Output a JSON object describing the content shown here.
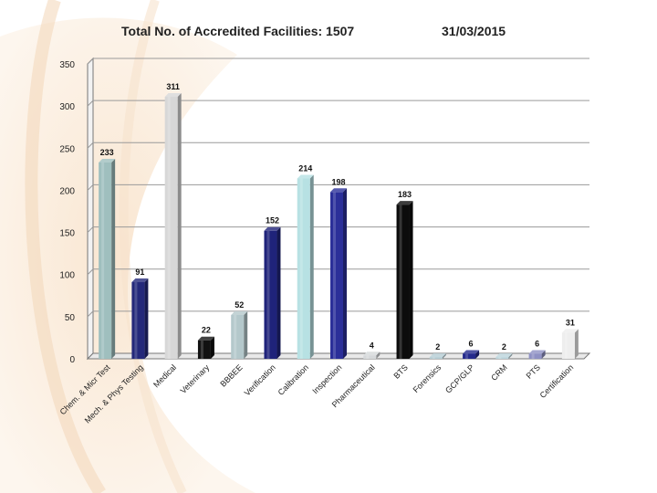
{
  "header": {
    "title": "Total No. of Accredited Facilities: 1507",
    "date": "31/03/2015"
  },
  "colors": {
    "background_swirl": "#f7dfc4",
    "grid": "#9a9a9a",
    "axis": "#777777"
  },
  "chart_data": {
    "type": "bar",
    "title": "Total No. of Accredited Facilities: 1507",
    "xlabel": "",
    "ylabel": "",
    "ylim": [
      0,
      350
    ],
    "yticks": [
      0,
      50,
      100,
      150,
      200,
      250,
      300,
      350
    ],
    "grid": true,
    "style": "3d-cylinder-bars",
    "categories": [
      "Chem. & Micr Test",
      "Mech. & Phys Testing",
      "Medical",
      "Veterinary",
      "BBBEE",
      "Verification",
      "Calibration",
      "Inspection",
      "Pharmaceutical",
      "BTS",
      "Forensics",
      "GCP/GLP",
      "CRM",
      "PTS",
      "Certification"
    ],
    "values": [
      233,
      91,
      311,
      22,
      52,
      152,
      214,
      198,
      4,
      183,
      2,
      6,
      2,
      6,
      31
    ],
    "bar_colors": [
      "#9fbfbe",
      "#24297a",
      "#d7d7d7",
      "#111111",
      "#b4c8cb",
      "#1f237a",
      "#b7e1e3",
      "#2b2f99",
      "#d5d8da",
      "#0c0c0c",
      "#b5cdd4",
      "#242a8c",
      "#bcd5dc",
      "#8f91c4",
      "#eeeeee"
    ]
  }
}
